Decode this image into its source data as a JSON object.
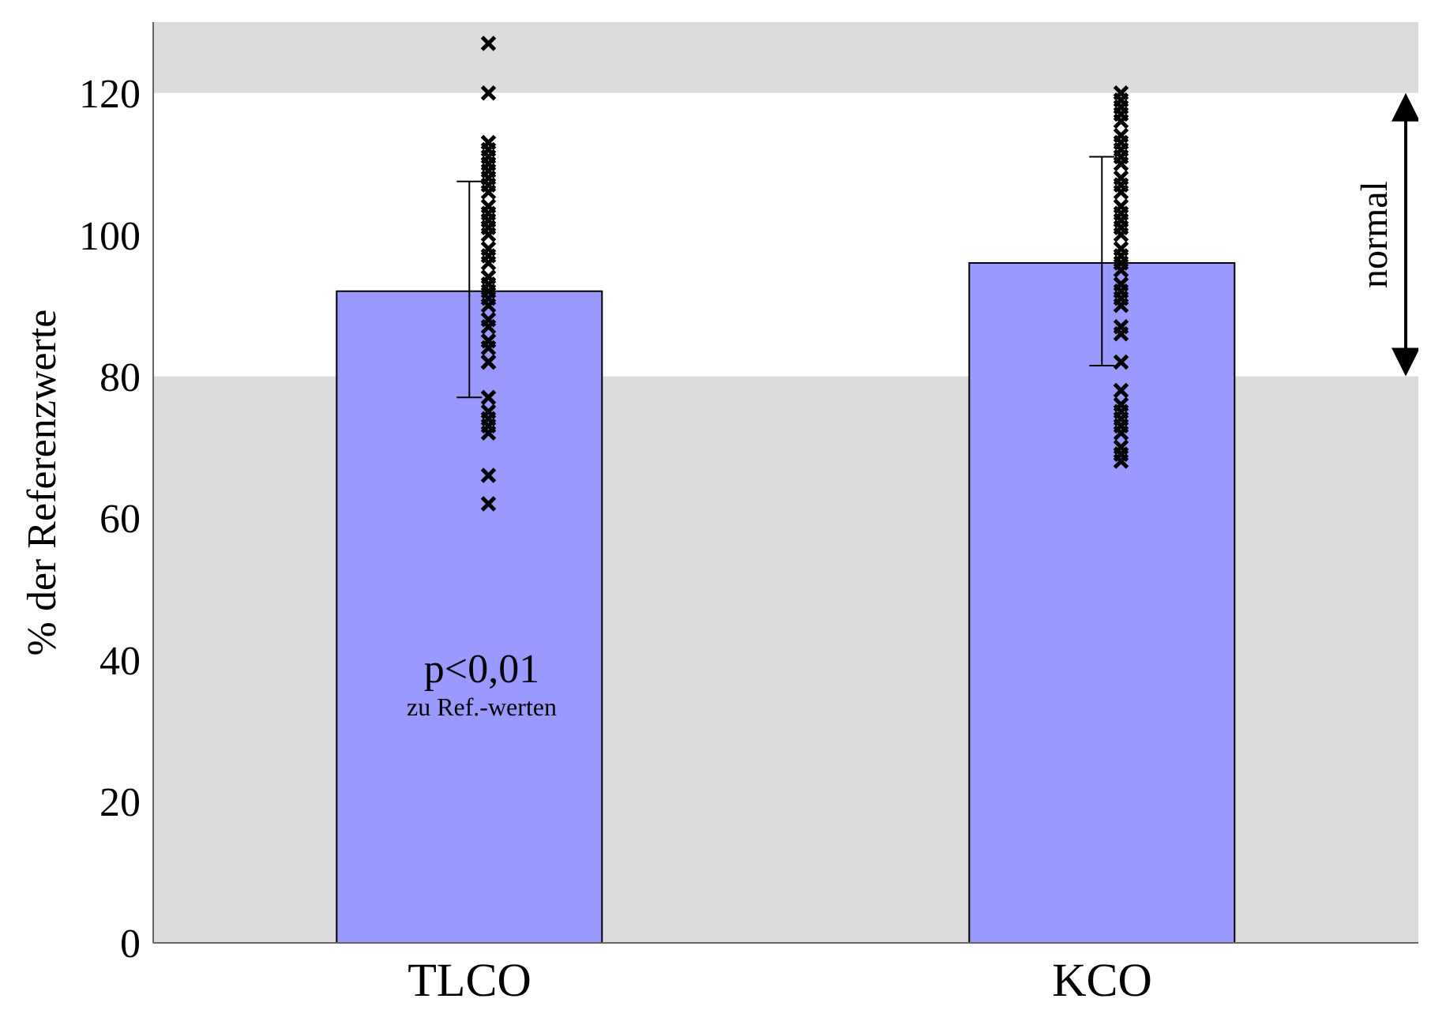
{
  "chart_data": {
    "type": "bar",
    "categories": [
      "TLCO",
      "KCO"
    ],
    "ylabel": "% der Referenzwerte",
    "ylim": [
      0,
      130
    ],
    "yticks": [
      0,
      20,
      40,
      60,
      80,
      100,
      120
    ],
    "grid": false,
    "legend": false,
    "series": [
      {
        "color": "#9999ff",
        "values": [
          92,
          96
        ],
        "errors": [
          [
            77,
            107.5
          ],
          [
            81.5,
            111
          ]
        ]
      },
      {
        "type": "scatter",
        "color": "#000000",
        "marker": "cross",
        "x": [
          "TLCO",
          "TLCO",
          "TLCO",
          "TLCO",
          "TLCO",
          "TLCO",
          "TLCO",
          "TLCO",
          "TLCO",
          "TLCO",
          "TLCO",
          "TLCO",
          "TLCO",
          "TLCO",
          "TLCO",
          "TLCO",
          "TLCO",
          "TLCO",
          "TLCO",
          "TLCO",
          "TLCO",
          "TLCO",
          "TLCO",
          "TLCO",
          "TLCO",
          "TLCO",
          "TLCO",
          "TLCO",
          "TLCO",
          "TLCO",
          "TLCO",
          "TLCO",
          "TLCO",
          "TLCO",
          "TLCO",
          "TLCO",
          "KCO",
          "KCO",
          "KCO",
          "KCO",
          "KCO",
          "KCO",
          "KCO",
          "KCO",
          "KCO",
          "KCO",
          "KCO",
          "KCO",
          "KCO",
          "KCO",
          "KCO",
          "KCO",
          "KCO",
          "KCO",
          "KCO",
          "KCO",
          "KCO",
          "KCO",
          "KCO",
          "KCO",
          "KCO",
          "KCO",
          "KCO",
          "KCO",
          "KCO",
          "KCO",
          "KCO",
          "KCO",
          "KCO",
          "KCO",
          "KCO",
          "KCO",
          "KCO",
          "KCO"
        ],
        "values": [
          127,
          120,
          113,
          112,
          111,
          110,
          109,
          108,
          107,
          106,
          104,
          103,
          102,
          101,
          100,
          98,
          97,
          96,
          94,
          93,
          92,
          91,
          90,
          88,
          87,
          85,
          84,
          82,
          82,
          77,
          75,
          74,
          73,
          72,
          66,
          62,
          120,
          119,
          118,
          117,
          116,
          114,
          113,
          112,
          111,
          110,
          108,
          107,
          106,
          104,
          103,
          102,
          101,
          100,
          98,
          97,
          96,
          95,
          93,
          92,
          91,
          90,
          87,
          86,
          82,
          78,
          76,
          75,
          74,
          73,
          72,
          70,
          69,
          68
        ]
      }
    ],
    "bands": [
      {
        "axis": "y",
        "from": 80,
        "to": 120,
        "label": "normal",
        "color": "#ffffff"
      }
    ],
    "annotations": [
      "p<0,01",
      "zu Ref.-werten"
    ]
  }
}
